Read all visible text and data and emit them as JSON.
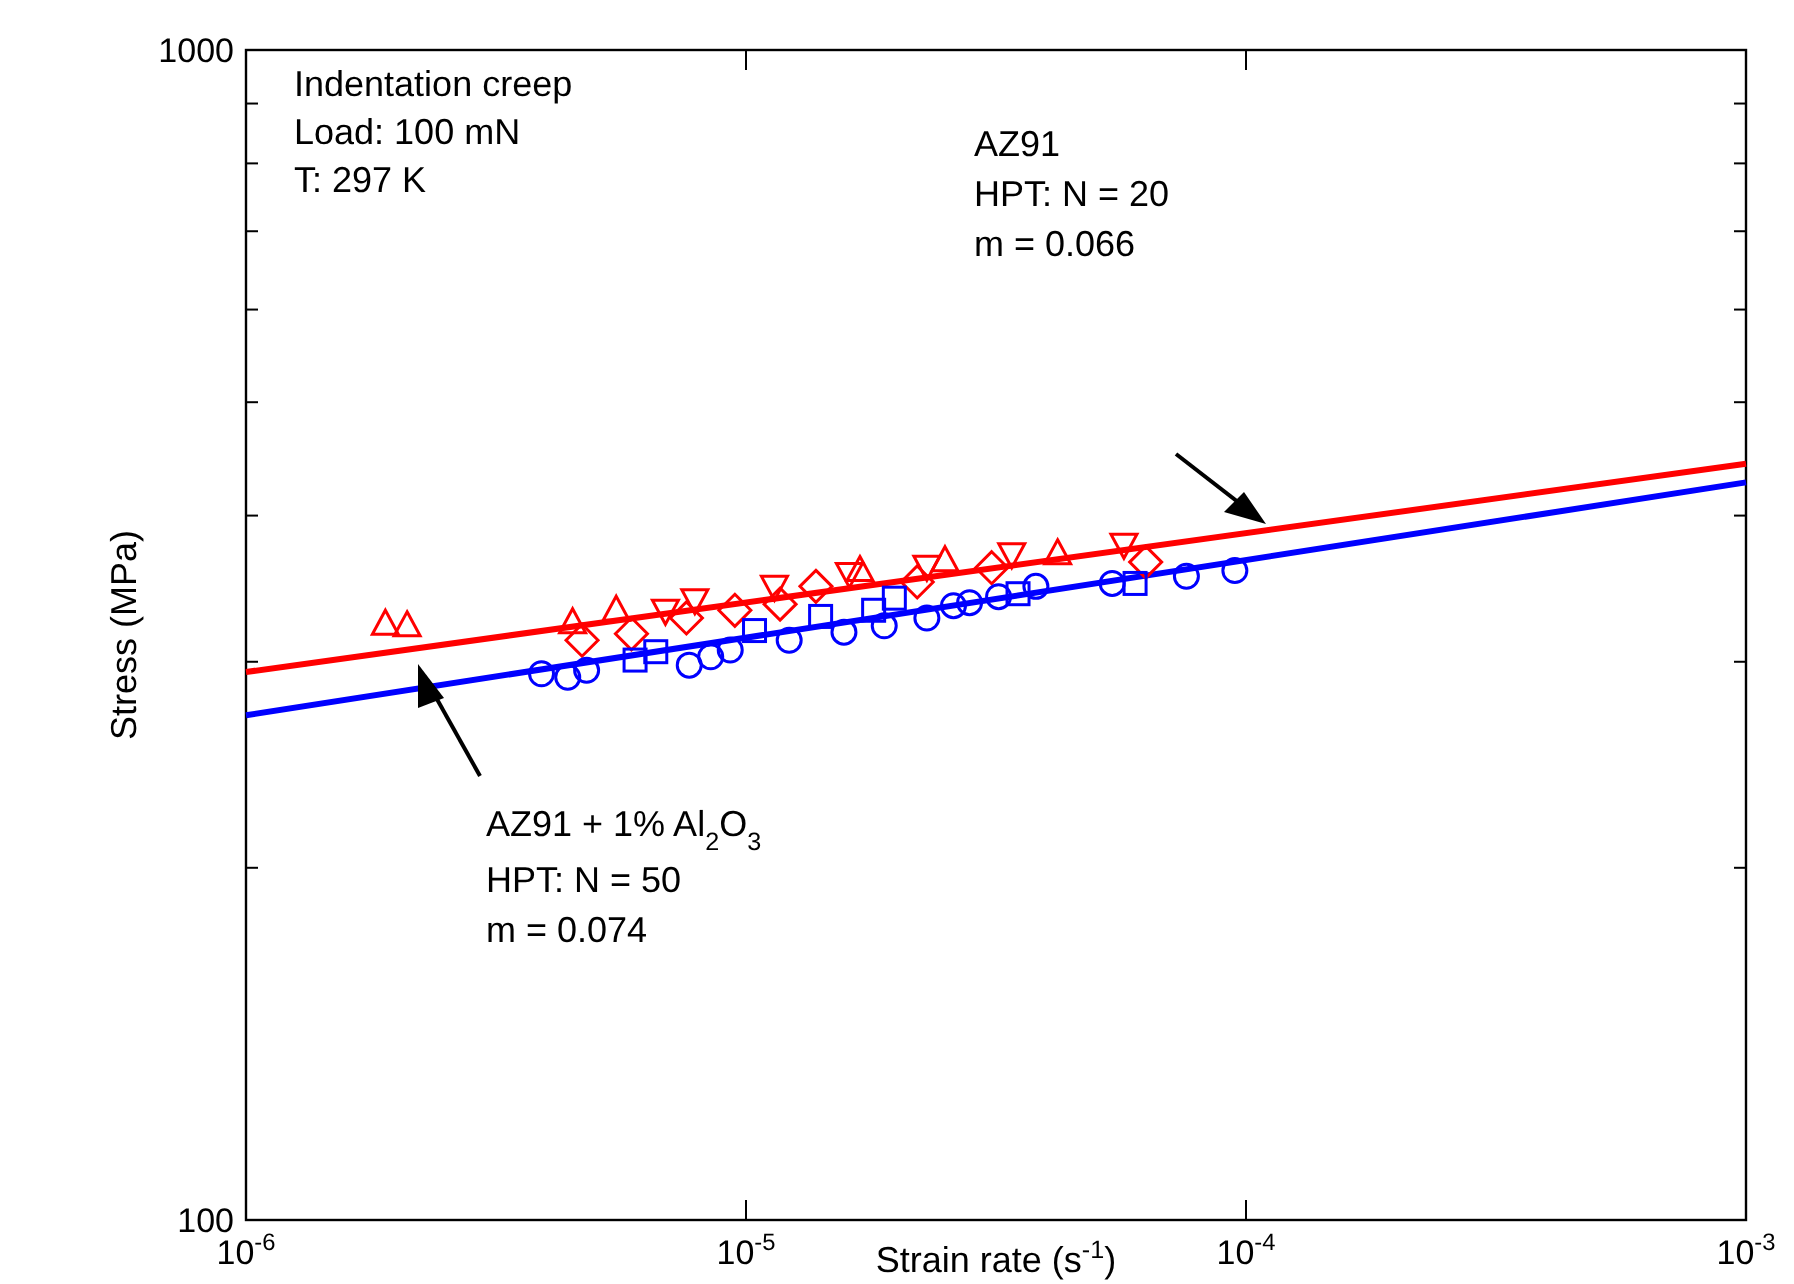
{
  "chart_data": {
    "type": "scatter",
    "log": "xy",
    "xlabel": "Strain rate (s$^{-1}$)",
    "ylabel": "Stress (MPa)",
    "xlim": [
      1e-06,
      0.001
    ],
    "ylim": [
      100,
      1000
    ],
    "xticks": [
      {
        "value": 1e-06,
        "label": "10$^{-6}$"
      },
      {
        "value": 1e-05,
        "label": "10$^{-5}$"
      },
      {
        "value": 0.0001,
        "label": "10$^{-4}$"
      },
      {
        "value": 0.001,
        "label": "10$^{-3}$"
      }
    ],
    "yticks": [
      100,
      {
        "value": 200,
        "label": null
      },
      {
        "value": 300,
        "label": null
      },
      {
        "value": 400,
        "label": null
      },
      {
        "value": 500,
        "label": null
      },
      {
        "value": 600,
        "label": null
      },
      {
        "value": 700,
        "label": null
      },
      {
        "value": 800,
        "label": null
      },
      {
        "value": 900,
        "label": null
      },
      1000
    ],
    "annotations": [
      "Indentation creep",
      "Load: 100 mN",
      "T: 297 K",
      "AZ91",
      "HPT: N = 20",
      "m = 0.066",
      "AZ91 + 1% Al$_{2}$O$_{3}$",
      "HPT: N = 50",
      "m = 0.074"
    ],
    "series": [
      {
        "type": "line",
        "color": "#ff0000",
        "x": [
          1e-06,
          0.001
        ],
        "values": [
          294,
          443
        ]
      },
      {
        "type": "line",
        "color": "#0000ff",
        "x": [
          1e-06,
          0.001
        ],
        "values": [
          270,
          427
        ]
      },
      {
        "color": "#ff0000",
        "marker": "triangle",
        "x": [
          1.9e-06,
          2.1e-06,
          4.5e-06,
          5.5e-06,
          1.69e-05,
          2.5e-05,
          4.2e-05
        ],
        "values": [
          323,
          322,
          324,
          332,
          359,
          366,
          371
        ]
      },
      {
        "color": "#ff0000",
        "marker": "triangle-down",
        "x": [
          6.9e-06,
          7.9e-06,
          1.14e-05,
          1.61e-05,
          2.3e-05,
          3.4e-05,
          5.7e-05
        ],
        "values": [
          332,
          339,
          348,
          357,
          362,
          371,
          378
        ]
      },
      {
        "color": "#ff0000",
        "marker": "diamond",
        "x": [
          4.7e-06,
          5.9e-06,
          7.6e-06,
          9.5e-06,
          1.17e-05,
          1.38e-05,
          2.2e-05,
          3.1e-05,
          6.3e-05
        ],
        "values": [
          313,
          317,
          327,
          332,
          336,
          348,
          351,
          361,
          365
        ]
      },
      {
        "color": "#0000ff",
        "marker": "circle",
        "x": [
          3.9e-06,
          4.4e-06,
          4.8e-06,
          7.7e-06,
          8.5e-06,
          9.3e-06,
          1.22e-05,
          1.57e-05,
          1.89e-05,
          2.3e-05,
          2.6e-05,
          2.8e-05,
          3.2e-05,
          3.8e-05,
          5.4e-05,
          7.6e-05,
          9.5e-05
        ],
        "values": [
          293,
          291,
          295,
          298,
          303,
          307,
          313,
          318,
          322,
          327,
          335,
          337,
          341,
          348,
          350,
          355,
          359
        ]
      },
      {
        "color": "#0000ff",
        "marker": "square",
        "x": [
          6e-06,
          6.6e-06,
          1.04e-05,
          1.41e-05,
          1.8e-05,
          1.98e-05,
          3.5e-05,
          6e-05
        ],
        "values": [
          301,
          306,
          319,
          328,
          332,
          340,
          343,
          350
        ]
      }
    ]
  }
}
